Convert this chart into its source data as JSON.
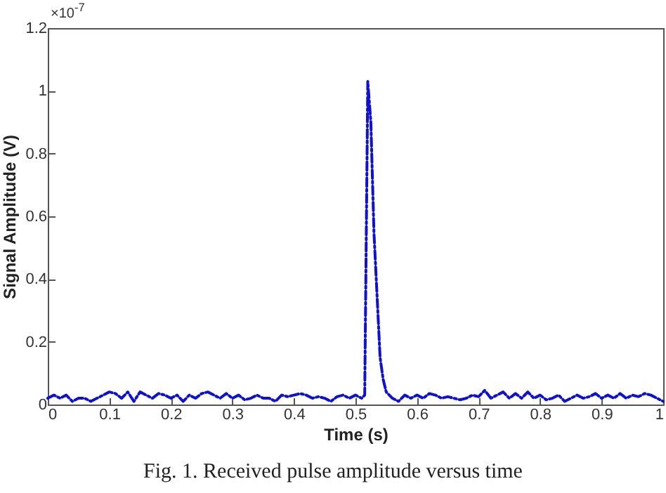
{
  "chart_data": {
    "type": "line",
    "xlabel": "Time (s)",
    "ylabel": "Signal Amplitude (V)",
    "annotations": [
      "×10$^{-7}$",
      "Fig. 1. Received pulse amplitude versus time"
    ],
    "xlim": [
      0,
      1
    ],
    "xticks": [
      0,
      0.1,
      0.2,
      0.3,
      0.4,
      0.5,
      0.6,
      0.7,
      0.8,
      0.9,
      1
    ],
    "ylim": [
      0,
      1.2
    ],
    "yticks": [
      0,
      0.2,
      0.4,
      0.6,
      0.8,
      1,
      1.2
    ],
    "grid": false,
    "line_style": "dashed",
    "marker": "none",
    "x": [
      0,
      0.01,
      0.02,
      0.03,
      0.04,
      0.05,
      0.06,
      0.07,
      0.08,
      0.09,
      0.1,
      0.11,
      0.12,
      0.13,
      0.14,
      0.15,
      0.16,
      0.17,
      0.18,
      0.19,
      0.2,
      0.21,
      0.22,
      0.23,
      0.24,
      0.25,
      0.26,
      0.27,
      0.28,
      0.29,
      0.3,
      0.31,
      0.32,
      0.33,
      0.34,
      0.35,
      0.36,
      0.37,
      0.38,
      0.39,
      0.4,
      0.41,
      0.42,
      0.43,
      0.44,
      0.45,
      0.46,
      0.47,
      0.48,
      0.49,
      0.5,
      0.51,
      0.515,
      0.52,
      0.525,
      0.53,
      0.535,
      0.54,
      0.545,
      0.55,
      0.56,
      0.57,
      0.58,
      0.59,
      0.6,
      0.61,
      0.62,
      0.63,
      0.64,
      0.65,
      0.66,
      0.67,
      0.68,
      0.69,
      0.7,
      0.71,
      0.72,
      0.73,
      0.74,
      0.75,
      0.76,
      0.77,
      0.78,
      0.79,
      0.8,
      0.81,
      0.82,
      0.83,
      0.84,
      0.85,
      0.86,
      0.87,
      0.88,
      0.89,
      0.9,
      0.91,
      0.92,
      0.93,
      0.94,
      0.95,
      0.96,
      0.97,
      0.98,
      0.99,
      1
    ],
    "series": [
      {
        "color": "#1010d0",
        "values": [
          0.02,
          0.03,
          0.02,
          0.03,
          0.01,
          0.02,
          0.02,
          0.01,
          0.02,
          0.03,
          0.04,
          0.035,
          0.02,
          0.04,
          0.01,
          0.04,
          0.03,
          0.02,
          0.035,
          0.03,
          0.02,
          0.03,
          0.01,
          0.03,
          0.02,
          0.035,
          0.04,
          0.03,
          0.02,
          0.035,
          0.02,
          0.03,
          0.015,
          0.02,
          0.03,
          0.02,
          0.02,
          0.01,
          0.03,
          0.025,
          0.03,
          0.035,
          0.03,
          0.02,
          0.025,
          0.02,
          0.01,
          0.025,
          0.03,
          0.02,
          0.03,
          0.02,
          0.03,
          1.03,
          0.9,
          0.55,
          0.35,
          0.15,
          0.08,
          0.04,
          0.02,
          0.01,
          0.03,
          0.02,
          0.03,
          0.02,
          0.035,
          0.03,
          0.02,
          0.025,
          0.02,
          0.015,
          0.02,
          0.03,
          0.025,
          0.045,
          0.02,
          0.03,
          0.04,
          0.02,
          0.035,
          0.02,
          0.04,
          0.02,
          0.03,
          0.015,
          0.02,
          0.03,
          0.01,
          0.02,
          0.03,
          0.02,
          0.025,
          0.035,
          0.02,
          0.03,
          0.02,
          0.035,
          0.02,
          0.03,
          0.025,
          0.035,
          0.03,
          0.02,
          0.01
        ]
      }
    ]
  }
}
